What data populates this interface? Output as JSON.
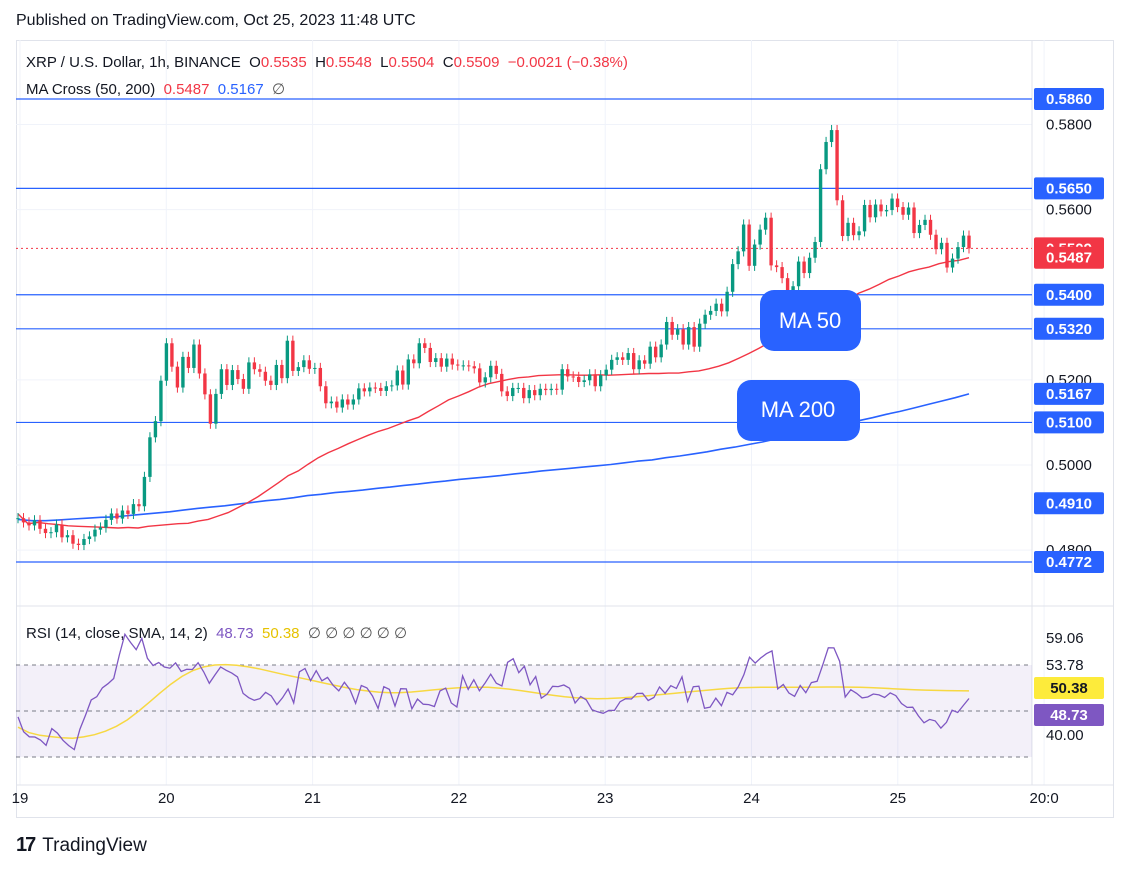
{
  "published": "Published on TradingView.com, Oct 25, 2023 11:48 UTC",
  "legend": {
    "symbol": "XRP / U.S. Dollar, 1h, BINANCE",
    "o_label": "O",
    "o_value": "0.5535",
    "h_label": "H",
    "h_value": "0.5548",
    "l_label": "L",
    "l_value": "0.5504",
    "c_label": "C",
    "c_value": "0.5509",
    "change": "−0.0021 (−0.38%)",
    "ma_label": "MA Cross (50, 200)",
    "ma50_value": "0.5487",
    "ma200_value": "0.5167",
    "ma_hidden": "∅",
    "rsi_label": "RSI (14, close, SMA, 14, 2)",
    "rsi_value": "48.73",
    "rsi_ma_value": "50.38",
    "rsi_hidden": "∅ ∅ ∅ ∅ ∅ ∅"
  },
  "footer": {
    "logo": "17",
    "brand": "TradingView"
  },
  "colors": {
    "up": "#089981",
    "down": "#f23645",
    "ma50": "#f23645",
    "ma200": "#2962ff",
    "hline": "#2962ff",
    "rsi": "#7e57c2",
    "rsi_ma": "#f7d842"
  },
  "chart_data": {
    "type": "candlestick",
    "x_ticks": [
      "19",
      "20",
      "21",
      "22",
      "23",
      "24",
      "25",
      "20:0"
    ],
    "price_axis_ticks": [
      "0.5800",
      "0.5600",
      "0.5200",
      "0.5000",
      "0.4800"
    ],
    "price_range": [
      0.4772,
      0.586
    ],
    "horizontal_levels": [
      {
        "value": 0.586,
        "label": "0.5860"
      },
      {
        "value": 0.565,
        "label": "0.5650"
      },
      {
        "value": 0.54,
        "label": "0.5400"
      },
      {
        "value": 0.532,
        "label": "0.5320"
      },
      {
        "value": 0.51,
        "label": "0.5100"
      },
      {
        "value": 0.4772,
        "label": "0.4772"
      }
    ],
    "price_labels": [
      {
        "value": 0.5509,
        "label": "0.5509",
        "kind": "last"
      },
      {
        "value": 0.5487,
        "label": "0.5487",
        "kind": "ma50"
      },
      {
        "value": 0.5167,
        "label": "0.5167",
        "kind": "ma200"
      },
      {
        "value": 0.491,
        "label": "0.4910",
        "kind": "level"
      }
    ],
    "annotations": [
      "MA 50",
      "MA 200"
    ],
    "closes": [
      0.4875,
      0.4865,
      0.4858,
      0.487,
      0.485,
      0.484,
      0.4842,
      0.486,
      0.483,
      0.4835,
      0.4815,
      0.4812,
      0.4826,
      0.4832,
      0.4848,
      0.4853,
      0.4871,
      0.4886,
      0.4874,
      0.4893,
      0.4885,
      0.4908,
      0.4903,
      0.4972,
      0.5065,
      0.5103,
      0.5198,
      0.5286,
      0.5231,
      0.5182,
      0.5254,
      0.5228,
      0.5283,
      0.5215,
      0.5166,
      0.5097,
      0.5167,
      0.5225,
      0.5188,
      0.5223,
      0.5202,
      0.5179,
      0.5241,
      0.5225,
      0.5219,
      0.5198,
      0.5188,
      0.5235,
      0.5204,
      0.5292,
      0.5221,
      0.523,
      0.5246,
      0.5226,
      0.5228,
      0.5185,
      0.5145,
      0.5149,
      0.5135,
      0.5154,
      0.5142,
      0.5154,
      0.518,
      0.5173,
      0.5182,
      0.5181,
      0.5174,
      0.5185,
      0.5187,
      0.5222,
      0.5189,
      0.5248,
      0.5239,
      0.5286,
      0.5275,
      0.5242,
      0.5251,
      0.5231,
      0.525,
      0.5236,
      0.5234,
      0.5234,
      0.5232,
      0.5227,
      0.5194,
      0.5206,
      0.5233,
      0.5214,
      0.5173,
      0.5162,
      0.5181,
      0.5181,
      0.5157,
      0.5176,
      0.5164,
      0.5179,
      0.5176,
      0.5179,
      0.5177,
      0.5225,
      0.5208,
      0.5207,
      0.5195,
      0.5199,
      0.5213,
      0.5185,
      0.5211,
      0.5224,
      0.5247,
      0.5253,
      0.5247,
      0.5263,
      0.5225,
      0.5246,
      0.5238,
      0.5278,
      0.5253,
      0.5283,
      0.5336,
      0.5306,
      0.5319,
      0.5283,
      0.5324,
      0.5278,
      0.5332,
      0.5353,
      0.5362,
      0.5379,
      0.5361,
      0.5407,
      0.5472,
      0.5502,
      0.5565,
      0.5468,
      0.5518,
      0.5553,
      0.5581,
      0.5469,
      0.5465,
      0.5439,
      0.5392,
      0.542,
      0.5478,
      0.5451,
      0.5487,
      0.5524,
      0.5695,
      0.5759,
      0.5787,
      0.5622,
      0.5538,
      0.5569,
      0.554,
      0.5549,
      0.5611,
      0.5582,
      0.5612,
      0.5596,
      0.5599,
      0.5626,
      0.5606,
      0.5588,
      0.5605,
      0.5545,
      0.5564,
      0.5576,
      0.5541,
      0.5507,
      0.5522,
      0.5464,
      0.5485,
      0.5512,
      0.5539,
      0.5509
    ],
    "ma50": [
      0.4885,
      0.4862,
      0.4865,
      0.4862,
      0.486,
      0.4857,
      0.4856,
      0.4855,
      0.4854,
      0.4853,
      0.4852,
      0.4853,
      0.4852,
      0.4856,
      0.4858,
      0.486,
      0.4862,
      0.4863,
      0.4868,
      0.4872,
      0.488,
      0.4888,
      0.49,
      0.4912,
      0.4926,
      0.4942,
      0.4958,
      0.4975,
      0.4986,
      0.5002,
      0.5017,
      0.5029,
      0.5039,
      0.505,
      0.506,
      0.507,
      0.5079,
      0.5086,
      0.5095,
      0.5104,
      0.5112,
      0.5126,
      0.5139,
      0.5153,
      0.5162,
      0.5172,
      0.5183,
      0.5191,
      0.5196,
      0.5201,
      0.5205,
      0.5207,
      0.521,
      0.5211,
      0.5212,
      0.5212,
      0.5211,
      0.5211,
      0.5212,
      0.5211,
      0.5212,
      0.5213,
      0.5214,
      0.5215,
      0.5215,
      0.5216,
      0.5216,
      0.5219,
      0.5221,
      0.5226,
      0.5232,
      0.524,
      0.5251,
      0.5262,
      0.5274,
      0.5287,
      0.53,
      0.5317,
      0.5333,
      0.5343,
      0.5355,
      0.5368,
      0.5378,
      0.5391,
      0.5404,
      0.5413,
      0.5424,
      0.5436,
      0.5444,
      0.5454,
      0.546,
      0.5465,
      0.5473,
      0.5478,
      0.5481,
      0.5487
    ],
    "ma200": [
      0.4872,
      0.4869,
      0.4869,
      0.4871,
      0.4873,
      0.4875,
      0.4877,
      0.4878,
      0.4881,
      0.4884,
      0.4887,
      0.489,
      0.4894,
      0.4898,
      0.4901,
      0.4904,
      0.4908,
      0.4912,
      0.4916,
      0.4919,
      0.4923,
      0.4928,
      0.4931,
      0.4935,
      0.4938,
      0.4941,
      0.4945,
      0.4948,
      0.4952,
      0.4955,
      0.4959,
      0.4962,
      0.4966,
      0.4969,
      0.4972,
      0.4975,
      0.4979,
      0.4982,
      0.4986,
      0.4989,
      0.4992,
      0.4995,
      0.4998,
      0.5001,
      0.5005,
      0.5009,
      0.5012,
      0.5017,
      0.5021,
      0.5026,
      0.5031,
      0.5037,
      0.5042,
      0.5048,
      0.5054,
      0.5061,
      0.5068,
      0.5074,
      0.5081,
      0.5089,
      0.5096,
      0.5104,
      0.5111,
      0.5119,
      0.5126,
      0.5134,
      0.5142,
      0.515,
      0.5158,
      0.5167
    ],
    "rsi_axis_ticks": [
      "59.06",
      "53.78",
      "40.00"
    ],
    "rsi_range": [
      35,
      62
    ],
    "rsi_band": [
      30,
      70
    ],
    "rsi": [
      44.68,
      41.4,
      40.31,
      40.27,
      39.61,
      38.44,
      42.12,
      41.12,
      39.55,
      38.41,
      37.51,
      41.97,
      45.06,
      48.39,
      49.11,
      51.06,
      51.96,
      53.11,
      58.24,
      62.82,
      61.04,
      59.43,
      61.94,
      57.54,
      55.97,
      56.63,
      55.64,
      55.38,
      56.54,
      54.64,
      55.12,
      55.08,
      56.58,
      54.55,
      52.05,
      53.91,
      55.64,
      54.91,
      54.3,
      53.46,
      49.85,
      48.89,
      48.32,
      48.69,
      50.09,
      49.31,
      47.37,
      48.88,
      50.81,
      47.76,
      54.58,
      55.3,
      52.62,
      54.82,
      52.61,
      53.35,
      51.62,
      50.38,
      52.28,
      50.66,
      47.66,
      51.57,
      51.04,
      49.27,
      46.55,
      51.31,
      50.72,
      47.06,
      50.86,
      50.82,
      46.45,
      48.62,
      47.47,
      47.39,
      46.97,
      50.39,
      51.01,
      47.73,
      46.86,
      53.67,
      50.72,
      52.85,
      50.4,
      52.12,
      54.05,
      52.07,
      51.49,
      56.67,
      57.46,
      54.39,
      55.82,
      51.73,
      53.54,
      48.79,
      49.64,
      51.4,
      51.33,
      51.68,
      50.98,
      47.73,
      49.16,
      48.42,
      46.27,
      45.81,
      45.46,
      46.1,
      46.1,
      48.02,
      48.68,
      48.62,
      49.82,
      49.87,
      48.28,
      48.95,
      51.25,
      49.87,
      51.52,
      50.94,
      53.49,
      48.08,
      51.3,
      51.43,
      46.56,
      46.81,
      48.78,
      47.14,
      50.05,
      49.54,
      51.28,
      53.94,
      57.79,
      56.5,
      57.63,
      58.55,
      59.17,
      50.83,
      51.79,
      49.93,
      49.21,
      51.59,
      49.99,
      52.2,
      52.5,
      56.06,
      59.84,
      59.82,
      56.9,
      49.05,
      50.66,
      49.87,
      48.85,
      49.04,
      49.7,
      49.51,
      48.94,
      49.94,
      49.36,
      47.63,
      46.76,
      46.82,
      44.91,
      43.38,
      44.14,
      43.8,
      42.22,
      43.5,
      46.16,
      45.64,
      47.2,
      48.73
    ],
    "rsi_ma": [
      42.42,
      41.23,
      40.65,
      40.36,
      40.11,
      39.98,
      40.29,
      40.77,
      41.55,
      42.62,
      44.02,
      45.87,
      47.88,
      49.94,
      51.88,
      53.58,
      54.85,
      55.66,
      56.07,
      56.17,
      56.03,
      55.71,
      55.26,
      54.71,
      54.16,
      53.63,
      53.15,
      52.65,
      52.11,
      51.59,
      51.11,
      50.68,
      50.36,
      50.12,
      50.0,
      50.01,
      50.14,
      50.37,
      50.61,
      50.83,
      51.02,
      51.15,
      51.21,
      51.17,
      51.01,
      50.77,
      50.46,
      50.1,
      49.74,
      49.39,
      49.1,
      48.88,
      48.74,
      48.68,
      48.71,
      48.82,
      48.98,
      49.17,
      49.39,
      49.62,
      49.85,
      50.08,
      50.32,
      50.54,
      50.75,
      50.93,
      51.06,
      51.14,
      51.18,
      51.19,
      51.19,
      51.19,
      51.21,
      51.22,
      51.24,
      51.25,
      51.23,
      51.19,
      51.11,
      51.0,
      50.88,
      50.76,
      50.65,
      50.56,
      50.5,
      50.45,
      50.42,
      50.38
    ]
  }
}
